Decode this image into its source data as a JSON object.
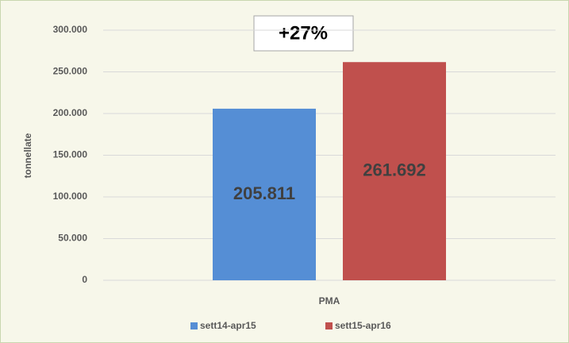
{
  "chart_data": {
    "type": "bar",
    "y_label": "tonnellate",
    "annotation": "+27%",
    "categories": [
      "PMA"
    ],
    "series": [
      {
        "name": "sett14-apr15",
        "color": "#558ed5",
        "values": [
          205811
        ],
        "value_labels": [
          "205.811"
        ]
      },
      {
        "name": "sett15-apr16",
        "color": "#c0504d",
        "values": [
          261692
        ],
        "value_labels": [
          "261.692"
        ]
      }
    ],
    "ylim": [
      0,
      300000
    ],
    "yticks": [
      0,
      {
        "value": 50000,
        "label": "50.000"
      },
      {
        "value": 100000,
        "label": "100.000"
      },
      {
        "value": 150000,
        "label": "150.000"
      },
      {
        "value": 200000,
        "label": "200.000"
      },
      {
        "value": 250000,
        "label": "250.000"
      },
      {
        "value": 300000,
        "label": "300.000"
      }
    ],
    "grid": true,
    "legend": "bottom"
  }
}
